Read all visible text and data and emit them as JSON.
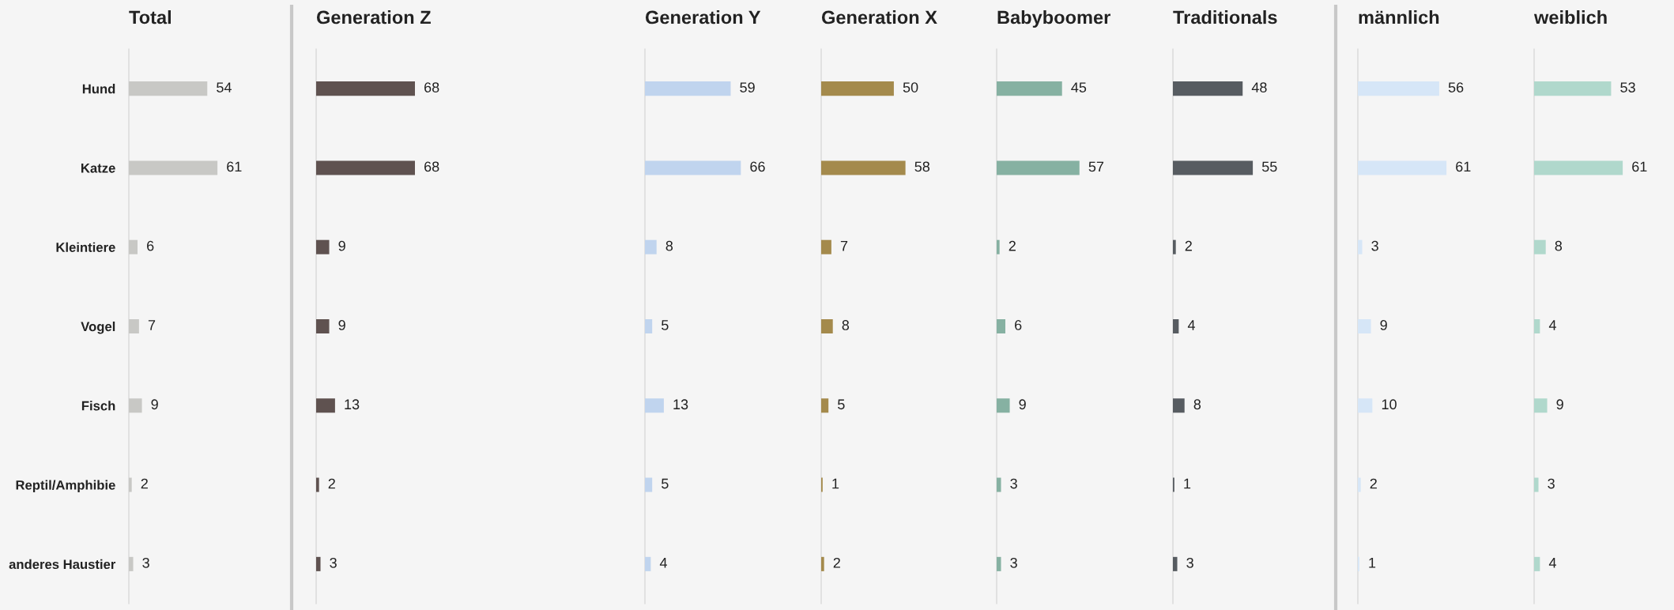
{
  "chart_data": [
    {
      "type": "bar",
      "orientation": "horizontal",
      "title": "Total",
      "categories": [
        "Hund",
        "Katze",
        "Kleintiere",
        "Vogel",
        "Fisch",
        "Reptil/Amphibie",
        "anderes Haustier"
      ],
      "values": [
        54,
        61,
        6,
        7,
        9,
        2,
        3
      ],
      "color": "#c8c8c5",
      "data_labels": true,
      "tick_labels": "y"
    },
    {
      "type": "bar",
      "orientation": "horizontal",
      "title": "Generation Z",
      "categories": [
        null,
        null,
        null,
        null,
        null,
        null,
        null
      ],
      "values": [
        68,
        68,
        9,
        9,
        13,
        2,
        3
      ],
      "color": "#5f5250",
      "data_labels": true,
      "tick_labels": false
    },
    {
      "type": "bar",
      "orientation": "horizontal",
      "title": "Generation Y",
      "categories": [
        null,
        null,
        null,
        null,
        null,
        null,
        null
      ],
      "values": [
        59,
        66,
        8,
        5,
        13,
        5,
        4
      ],
      "color": "#c0d4ee",
      "data_labels": true,
      "tick_labels": false
    },
    {
      "type": "bar",
      "orientation": "horizontal",
      "title": "Generation X",
      "categories": [
        null,
        null,
        null,
        null,
        null,
        null,
        null
      ],
      "values": [
        50,
        58,
        7,
        8,
        5,
        1,
        2
      ],
      "color": "#a48a4c",
      "data_labels": true,
      "tick_labels": false
    },
    {
      "type": "bar",
      "orientation": "horizontal",
      "title": "Babyboomer",
      "categories": [
        null,
        null,
        null,
        null,
        null,
        null,
        null
      ],
      "values": [
        45,
        57,
        2,
        6,
        9,
        3,
        3
      ],
      "color": "#86b1a2",
      "data_labels": true,
      "tick_labels": false
    },
    {
      "type": "bar",
      "orientation": "horizontal",
      "title": "Traditionals",
      "categories": [
        null,
        null,
        null,
        null,
        null,
        null,
        null
      ],
      "values": [
        48,
        55,
        2,
        4,
        8,
        1,
        3
      ],
      "color": "#575c61",
      "data_labels": true,
      "tick_labels": false
    },
    {
      "type": "bar",
      "orientation": "horizontal",
      "title": "männlich",
      "categories": [
        null,
        null,
        null,
        null,
        null,
        null,
        null
      ],
      "values": [
        56,
        61,
        3,
        9,
        10,
        2,
        1
      ],
      "color": "#d6e6f7",
      "data_labels": true,
      "tick_labels": false
    },
    {
      "type": "bar",
      "orientation": "horizontal",
      "title": "weiblich",
      "categories": [
        null,
        null,
        null,
        null,
        null,
        null,
        null
      ],
      "values": [
        53,
        61,
        8,
        4,
        9,
        3,
        4
      ],
      "color": "#b0d8cc",
      "data_labels": true,
      "tick_labels": false
    }
  ]
}
